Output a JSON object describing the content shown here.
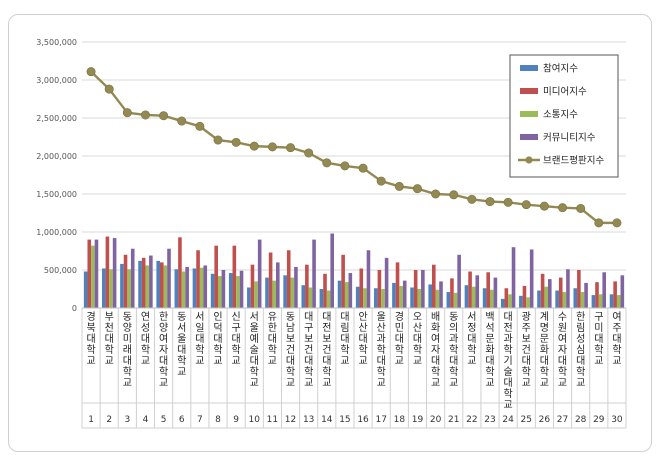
{
  "chart_data": {
    "type": "bar",
    "ylim": [
      0,
      3500000
    ],
    "yticks": [
      "0",
      "500,000",
      "1,000,000",
      "1,500,000",
      "2,000,000",
      "2,500,000",
      "3,000,000",
      "3,500,000"
    ],
    "grid": true,
    "legend_position": "top-right",
    "categories": [
      "1",
      "2",
      "3",
      "4",
      "5",
      "6",
      "7",
      "8",
      "9",
      "10",
      "11",
      "12",
      "13",
      "14",
      "15",
      "16",
      "17",
      "18",
      "19",
      "20",
      "21",
      "22",
      "23",
      "24",
      "25",
      "26",
      "27",
      "28",
      "29",
      "30"
    ],
    "universities": [
      "경북대학교",
      "부천대학교",
      "동양미래대학교",
      "연성대학교",
      "한양여자대학교",
      "동서울대학교",
      "서일대학교",
      "인덕대학교",
      "신구대학교",
      "서울예술대학교",
      "유한대학교",
      "동남보건대학교",
      "대구보건대학교",
      "대전보건대학교",
      "대림대학교",
      "안산대학교",
      "울산과학대학교",
      "경민대학교",
      "오산대학교",
      "배화여자대학교",
      "동의과학대학교",
      "서정대학교",
      "백석문화대학교",
      "대전과학기술대학교",
      "광주보건대학교",
      "계명문화대학교",
      "수원여자대학교",
      "한림성심대학교",
      "구미대학교",
      "여주대학교"
    ],
    "series": [
      {
        "name": "참여지수",
        "color": "#4f81bd",
        "values": [
          480000,
          520000,
          580000,
          620000,
          620000,
          510000,
          520000,
          450000,
          460000,
          270000,
          400000,
          430000,
          300000,
          250000,
          360000,
          280000,
          260000,
          330000,
          270000,
          310000,
          210000,
          300000,
          260000,
          120000,
          160000,
          230000,
          230000,
          260000,
          170000,
          180000
        ]
      },
      {
        "name": "미디어지수",
        "color": "#c0504d",
        "values": [
          900000,
          940000,
          700000,
          660000,
          600000,
          930000,
          760000,
          820000,
          820000,
          570000,
          730000,
          760000,
          570000,
          450000,
          700000,
          520000,
          500000,
          600000,
          500000,
          570000,
          390000,
          480000,
          470000,
          260000,
          290000,
          450000,
          400000,
          500000,
          340000,
          350000
        ]
      },
      {
        "name": "소통지수",
        "color": "#9bbb59",
        "values": [
          820000,
          510000,
          510000,
          560000,
          560000,
          480000,
          530000,
          420000,
          420000,
          350000,
          360000,
          400000,
          270000,
          230000,
          340000,
          260000,
          250000,
          290000,
          250000,
          240000,
          200000,
          280000,
          240000,
          180000,
          140000,
          280000,
          210000,
          210000,
          180000,
          170000
        ]
      },
      {
        "name": "커뮤니티지수",
        "color": "#8064a2",
        "values": [
          900000,
          920000,
          780000,
          690000,
          780000,
          540000,
          560000,
          500000,
          490000,
          900000,
          600000,
          540000,
          900000,
          980000,
          460000,
          760000,
          660000,
          360000,
          500000,
          350000,
          700000,
          430000,
          400000,
          800000,
          770000,
          380000,
          510000,
          330000,
          470000,
          430000
        ]
      },
      {
        "name": "브랜드평판지수",
        "color": "#938953",
        "type": "line",
        "values": [
          3110000,
          2880000,
          2570000,
          2540000,
          2530000,
          2460000,
          2390000,
          2210000,
          2180000,
          2130000,
          2120000,
          2110000,
          2040000,
          1910000,
          1870000,
          1840000,
          1670000,
          1600000,
          1570000,
          1500000,
          1490000,
          1430000,
          1400000,
          1390000,
          1360000,
          1340000,
          1320000,
          1310000,
          1120000,
          1120000
        ]
      }
    ]
  }
}
